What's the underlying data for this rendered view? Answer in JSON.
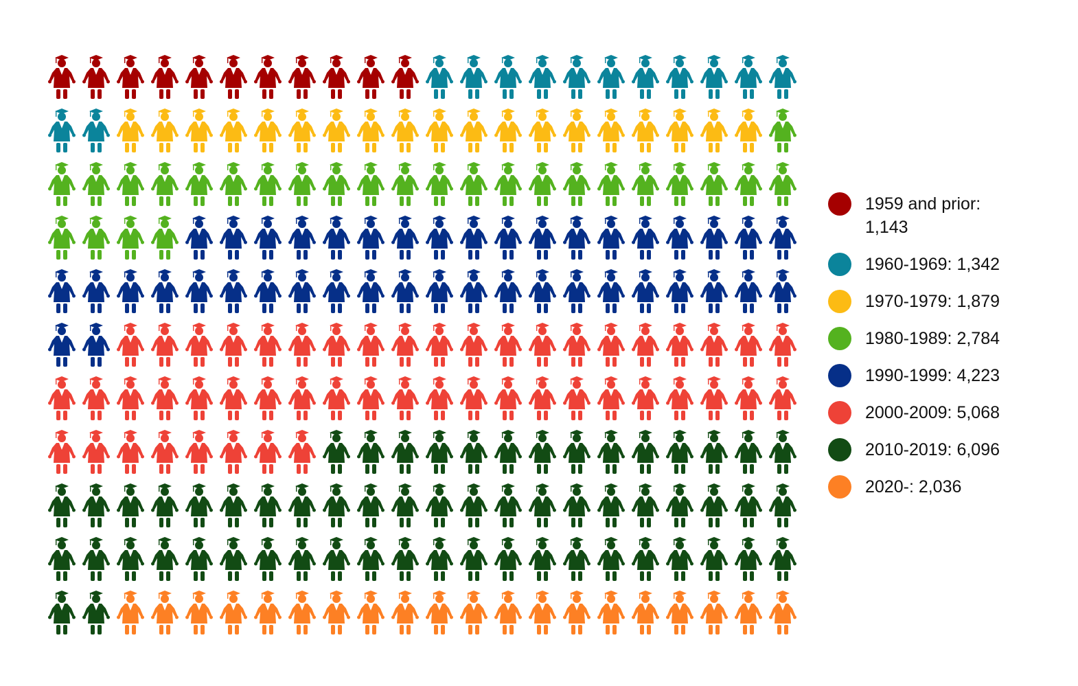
{
  "chart_data": {
    "type": "pictogram",
    "title": "",
    "columns": 22,
    "rows": 11,
    "legend_position": "right",
    "series": [
      {
        "name": "1959 and prior",
        "label": "1959 and prior: 1,143",
        "value": 1143,
        "icons": 11,
        "color": "#a50000"
      },
      {
        "name": "1960-1969",
        "label": "1960-1969: 1,342",
        "value": 1342,
        "icons": 13,
        "color": "#0b849b"
      },
      {
        "name": "1970-1979",
        "label": "1970-1979: 1,879",
        "value": 1879,
        "icons": 19,
        "color": "#fcbb14"
      },
      {
        "name": "1980-1989",
        "label": "1980-1989: 2,784",
        "value": 2784,
        "icons": 27,
        "color": "#54b21f"
      },
      {
        "name": "1990-1999",
        "label": "1990-1999: 4,223",
        "value": 4223,
        "icons": 42,
        "color": "#062f88"
      },
      {
        "name": "2000-2009",
        "label": "2000-2009: 5,068",
        "value": 5068,
        "icons": 50,
        "color": "#ee4237"
      },
      {
        "name": "2010-2019",
        "label": "2010-2019: 6,096",
        "value": 6096,
        "icons": 60,
        "color": "#124b14"
      },
      {
        "name": "2020-",
        "label": "2020-: 2,036",
        "value": 2036,
        "icons": 20,
        "color": "#fd8024"
      }
    ]
  }
}
